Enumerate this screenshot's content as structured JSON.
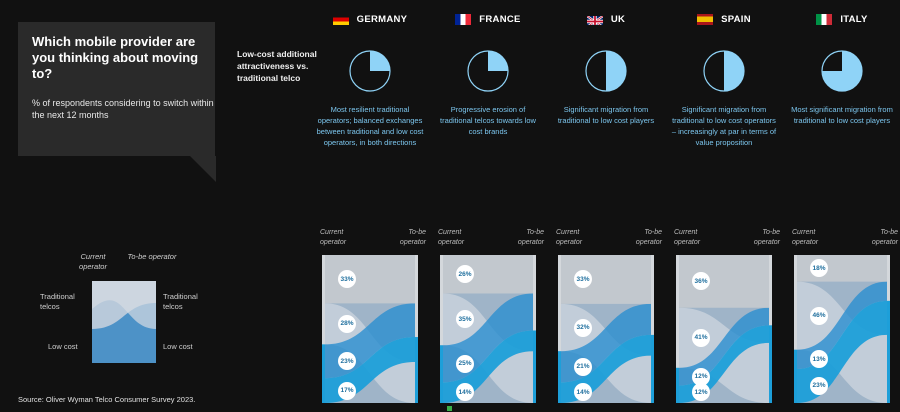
{
  "question": {
    "title": "Which mobile provider are you thinking about moving to?",
    "subtitle": "% of respondents considering to switch within the next 12 months"
  },
  "attractiveness_label": "Low-cost additional attractiveness vs. traditional telco",
  "flow_headers": {
    "current": "Current operator",
    "tobe": "To-be operator"
  },
  "legend": {
    "current": "Current operator",
    "tobe": "To-be operator",
    "traditional_left": "Traditional telcos",
    "traditional_right": "Traditional telcos",
    "lowcost_left": "Low cost",
    "lowcost_right": "Low cost"
  },
  "source": "Source: Oliver Wyman Telco Consumer Survey 2023.",
  "colors": {
    "traditional": "#c4c9cf",
    "lowcost": "#1d9fd9",
    "pie": "#8fd3f7",
    "text_blue": "#7cc6ee"
  },
  "chart_data": {
    "type": "sankey",
    "title": "Which mobile provider are you thinking about moving to?",
    "subtitle": "% of respondents considering to switch within the next 12 months",
    "nodes": [
      "Traditional telcos (current)",
      "Low cost (current)",
      "Traditional telcos (to-be)",
      "Low cost (to-be)"
    ],
    "countries": [
      {
        "name": "GERMANY",
        "pie_fraction": 0.25,
        "description": "Most resilient traditional operators; balanced exchanges between traditional and low cost operators, in both directions",
        "flows": {
          "trad_to_trad": 33,
          "trad_to_low": 28,
          "low_to_trad": 23,
          "low_to_low": 17
        },
        "labels": [
          "33%",
          "28%",
          "23%",
          "17%"
        ]
      },
      {
        "name": "FRANCE",
        "pie_fraction": 0.25,
        "description": "Progressive erosion of traditional telcos towards low cost brands",
        "flows": {
          "trad_to_trad": 26,
          "trad_to_low": 35,
          "low_to_trad": 25,
          "low_to_low": 14
        },
        "labels": [
          "26%",
          "35%",
          "25%",
          "14%"
        ]
      },
      {
        "name": "UK",
        "pie_fraction": 0.5,
        "description": "Significant migration from traditional to low cost players",
        "flows": {
          "trad_to_trad": 33,
          "trad_to_low": 32,
          "low_to_trad": 21,
          "low_to_low": 14
        },
        "labels": [
          "33%",
          "32%",
          "21%",
          "14%"
        ]
      },
      {
        "name": "SPAIN",
        "pie_fraction": 0.5,
        "description": "Significant migration from traditional to low cost operators – increasingly at par in terms of value proposition",
        "flows": {
          "trad_to_trad": 36,
          "trad_to_low": 41,
          "low_to_trad": 12,
          "low_to_low": 12
        },
        "labels": [
          "36%",
          "41%",
          "12%",
          "12%"
        ]
      },
      {
        "name": "ITALY",
        "pie_fraction": 0.75,
        "description": "Most significant migration from traditional to low cost players",
        "flows": {
          "trad_to_trad": 18,
          "trad_to_low": 46,
          "low_to_trad": 13,
          "low_to_low": 23
        },
        "labels": [
          "18%",
          "46%",
          "13%",
          "23%"
        ]
      }
    ]
  }
}
